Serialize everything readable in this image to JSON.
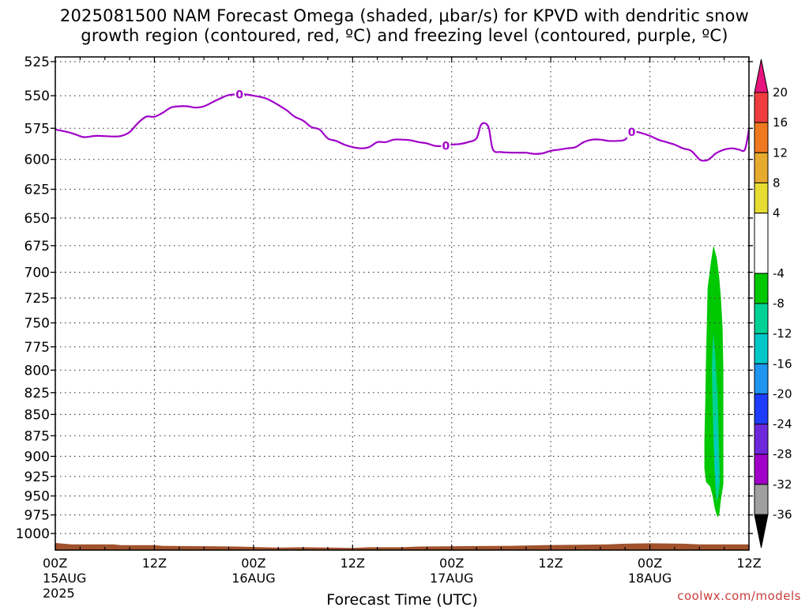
{
  "title": {
    "line1": "2025081500 NAM Forecast Omega (shaded, μbar/s) for KPVD with dendritic snow",
    "line2": "growth region (contoured, red, ºC) and freezing level (contoured, purple, ºC)"
  },
  "credit": "coolwx.com/models",
  "chart_data": {
    "type": "contour",
    "title": "2025081500 NAM Forecast Omega (shaded, μbar/s) for KPVD with dendritic snow growth region (contoured, red, ºC) and freezing level (contoured, purple, ºC)",
    "xlabel": "Forecast Time (UTC)",
    "ylabel": "",
    "x_range_hours": [
      0,
      84
    ],
    "y_range": [
      1000,
      525
    ],
    "y_scale": "log-pressure",
    "grid": true,
    "y_ticks": [
      525,
      550,
      575,
      600,
      625,
      650,
      675,
      700,
      725,
      750,
      775,
      800,
      825,
      850,
      875,
      900,
      925,
      950,
      975,
      1000
    ],
    "x_ticks": [
      {
        "hour": 0,
        "label": "00Z",
        "date": "15AUG",
        "year": "2025"
      },
      {
        "hour": 12,
        "label": "12Z",
        "date": "",
        "year": ""
      },
      {
        "hour": 24,
        "label": "00Z",
        "date": "16AUG",
        "year": ""
      },
      {
        "hour": 36,
        "label": "12Z",
        "date": "",
        "year": ""
      },
      {
        "hour": 48,
        "label": "00Z",
        "date": "17AUG",
        "year": ""
      },
      {
        "hour": 60,
        "label": "12Z",
        "date": "",
        "year": ""
      },
      {
        "hour": 72,
        "label": "00Z",
        "date": "18AUG",
        "year": ""
      },
      {
        "hour": 84,
        "label": "12Z",
        "date": "",
        "year": ""
      }
    ],
    "freezing_level": {
      "color": "#a000c8",
      "contour_label": "0",
      "label_hours": [
        22.3,
        47.3,
        69.8
      ],
      "points": [
        [
          0,
          576
        ],
        [
          1.5,
          578
        ],
        [
          2.5,
          580
        ],
        [
          3.5,
          582
        ],
        [
          5,
          581
        ],
        [
          7,
          581.5
        ],
        [
          8,
          581
        ],
        [
          9,
          578
        ],
        [
          10,
          571
        ],
        [
          11,
          566
        ],
        [
          12,
          566
        ],
        [
          13,
          563
        ],
        [
          14,
          559
        ],
        [
          15,
          558
        ],
        [
          16,
          558
        ],
        [
          17,
          559
        ],
        [
          18,
          558
        ],
        [
          19,
          555
        ],
        [
          20,
          552
        ],
        [
          21,
          549.5
        ],
        [
          22.3,
          549
        ],
        [
          23,
          549
        ],
        [
          24,
          550
        ],
        [
          25.5,
          552
        ],
        [
          27,
          557
        ],
        [
          28,
          561
        ],
        [
          29,
          566
        ],
        [
          30,
          569
        ],
        [
          31,
          574
        ],
        [
          32,
          576
        ],
        [
          33,
          583
        ],
        [
          34,
          585
        ],
        [
          35,
          588
        ],
        [
          36,
          590
        ],
        [
          37,
          591
        ],
        [
          38,
          590
        ],
        [
          39,
          586
        ],
        [
          40,
          586
        ],
        [
          41,
          584
        ],
        [
          42,
          584
        ],
        [
          43,
          584.5
        ],
        [
          44,
          586
        ],
        [
          45,
          587
        ],
        [
          46,
          589
        ],
        [
          47.3,
          589
        ],
        [
          48,
          588
        ],
        [
          49,
          587.5
        ],
        [
          50,
          586
        ],
        [
          51,
          583
        ],
        [
          51.5,
          573
        ],
        [
          52,
          571
        ],
        [
          52.5,
          575
        ],
        [
          53,
          592
        ],
        [
          54,
          594
        ],
        [
          56,
          594.5
        ],
        [
          57,
          594.5
        ],
        [
          58,
          595.5
        ],
        [
          59,
          595
        ],
        [
          60,
          593
        ],
        [
          61,
          592
        ],
        [
          62,
          591
        ],
        [
          63,
          590
        ],
        [
          64,
          586
        ],
        [
          65,
          584
        ],
        [
          66,
          584
        ],
        [
          67,
          585
        ],
        [
          68,
          585
        ],
        [
          69,
          584
        ],
        [
          69.8,
          578
        ],
        [
          70.5,
          578
        ],
        [
          72,
          581
        ],
        [
          73,
          584
        ],
        [
          74,
          586
        ],
        [
          75,
          588
        ],
        [
          76,
          591
        ],
        [
          77,
          593
        ],
        [
          78,
          600
        ],
        [
          78.5,
          601
        ],
        [
          79,
          600.5
        ],
        [
          79.5,
          598
        ],
        [
          80,
          595
        ],
        [
          81,
          592
        ],
        [
          82,
          591
        ],
        [
          82.8,
          592
        ],
        [
          83.5,
          592
        ],
        [
          84,
          576
        ]
      ]
    },
    "omega_features": [
      {
        "level": -4,
        "color": "#00c800",
        "outline": [
          [
            79.7,
            675
          ],
          [
            80.1,
            686
          ],
          [
            80.4,
            705
          ],
          [
            80.6,
            725
          ],
          [
            80.8,
            755
          ],
          [
            80.9,
            800
          ],
          [
            80.9,
            850
          ],
          [
            80.9,
            900
          ],
          [
            80.9,
            935
          ],
          [
            80.6,
            955
          ],
          [
            80.4,
            975
          ],
          [
            80.2,
            978
          ],
          [
            79.9,
            968
          ],
          [
            79.6,
            950
          ],
          [
            79.3,
            938
          ],
          [
            78.8,
            932
          ],
          [
            78.6,
            915
          ],
          [
            78.6,
            880
          ],
          [
            78.7,
            840
          ],
          [
            78.8,
            790
          ],
          [
            78.9,
            750
          ],
          [
            79.0,
            715
          ],
          [
            79.4,
            690
          ],
          [
            79.7,
            675
          ]
        ]
      },
      {
        "level": -8,
        "color": "#00d296",
        "outline": [
          [
            79.7,
            760
          ],
          [
            79.95,
            790
          ],
          [
            80.2,
            830
          ],
          [
            80.35,
            880
          ],
          [
            80.5,
            930
          ],
          [
            80.3,
            950
          ],
          [
            80.05,
            958
          ],
          [
            79.85,
            920
          ],
          [
            79.7,
            880
          ],
          [
            79.6,
            840
          ],
          [
            79.5,
            800
          ],
          [
            79.6,
            775
          ],
          [
            79.7,
            760
          ]
        ]
      },
      {
        "level": -12,
        "color": "#00c8c8",
        "outline": [
          [
            79.9,
            850
          ],
          [
            80.1,
            880
          ],
          [
            80.25,
            920
          ],
          [
            80.1,
            945
          ],
          [
            79.95,
            930
          ],
          [
            79.85,
            900
          ],
          [
            79.8,
            870
          ],
          [
            79.9,
            850
          ]
        ]
      }
    ],
    "terrain": {
      "color": "#a0522d",
      "top": [
        [
          0,
          1013
        ],
        [
          2,
          1015
        ],
        [
          7,
          1015
        ],
        [
          8,
          1016
        ],
        [
          12,
          1016
        ],
        [
          13,
          1017
        ],
        [
          22,
          1018
        ],
        [
          27,
          1019.5
        ],
        [
          30,
          1019
        ],
        [
          36,
          1020
        ],
        [
          38,
          1019
        ],
        [
          42,
          1019
        ],
        [
          44,
          1018
        ],
        [
          55,
          1017
        ],
        [
          59,
          1016
        ],
        [
          67,
          1015
        ],
        [
          69,
          1014
        ],
        [
          72,
          1013.5
        ],
        [
          76,
          1014
        ],
        [
          78,
          1015
        ],
        [
          84,
          1015
        ]
      ]
    },
    "colorbar": {
      "ticks": [
        20,
        16,
        12,
        8,
        4,
        -4,
        -8,
        -12,
        -16,
        -20,
        -24,
        -28,
        -32,
        -36
      ],
      "bins": [
        {
          "from": 20,
          "to": 24,
          "color": "#e6147d"
        },
        {
          "from": 16,
          "to": 20,
          "color": "#f03c3c"
        },
        {
          "from": 12,
          "to": 16,
          "color": "#f0781e"
        },
        {
          "from": 8,
          "to": 12,
          "color": "#e6aa2d"
        },
        {
          "from": 4,
          "to": 8,
          "color": "#e6dc32"
        },
        {
          "from": -4,
          "to": 4,
          "color": "#ffffff"
        },
        {
          "from": -8,
          "to": -4,
          "color": "#00c800"
        },
        {
          "from": -12,
          "to": -8,
          "color": "#00d296"
        },
        {
          "from": -16,
          "to": -12,
          "color": "#00c8c8"
        },
        {
          "from": -20,
          "to": -16,
          "color": "#1e96f0"
        },
        {
          "from": -24,
          "to": -20,
          "color": "#1e3cff"
        },
        {
          "from": -28,
          "to": -24,
          "color": "#6e28dc"
        },
        {
          "from": -32,
          "to": -28,
          "color": "#a000c8"
        },
        {
          "from": -36,
          "to": -32,
          "color": "#a0a0a0"
        },
        {
          "from": -40,
          "to": -36,
          "color": "#000000"
        }
      ]
    }
  }
}
